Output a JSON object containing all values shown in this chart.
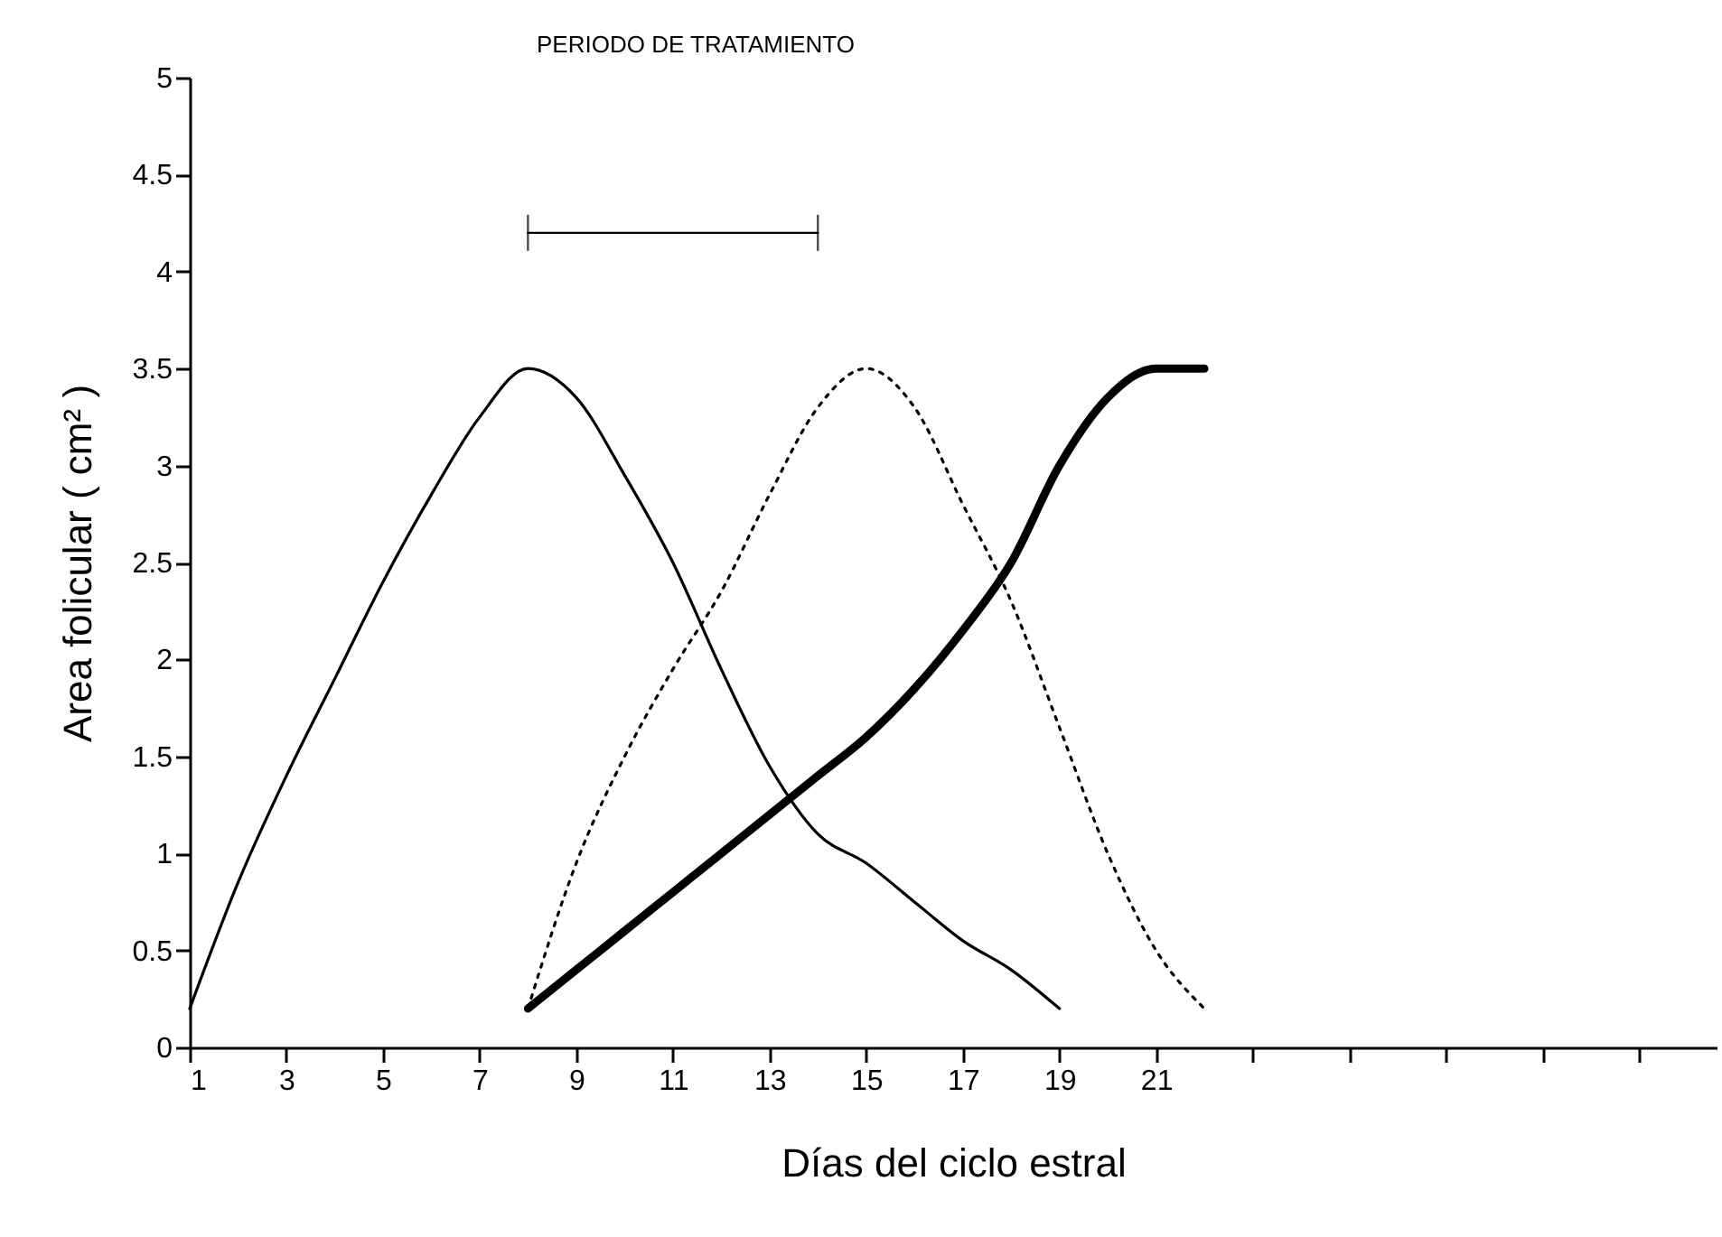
{
  "chart_data": {
    "type": "line",
    "xlabel": "Días del ciclo estral",
    "ylabel": "Area folicular ( cm² )",
    "xlim": [
      1,
      32.6
    ],
    "xticks": [
      1,
      3,
      5,
      7,
      9,
      11,
      13,
      15,
      17,
      19,
      21,
      {
        "value": 23,
        "label": null
      },
      {
        "value": 25,
        "label": null
      },
      {
        "value": 27,
        "label": null
      },
      {
        "value": 29,
        "label": null
      },
      {
        "value": 31,
        "label": null
      }
    ],
    "ylim": [
      0,
      5
    ],
    "yticks": [
      0,
      0.5,
      1,
      1.5,
      2,
      2.5,
      3,
      3.5,
      4,
      4.5,
      5
    ],
    "grid": false,
    "marker": "none",
    "series": [
      {
        "color": "#000000",
        "line_style": "solid",
        "x": [
          1,
          2,
          3,
          4,
          5,
          6,
          7,
          8,
          9,
          10,
          11,
          12,
          13,
          14,
          15,
          16,
          17,
          18,
          19
        ],
        "values": [
          0.2,
          0.85,
          1.4,
          1.9,
          2.4,
          2.85,
          3.25,
          3.5,
          3.35,
          2.95,
          2.5,
          1.95,
          1.45,
          1.1,
          0.95,
          0.75,
          0.55,
          0.4,
          0.2
        ]
      },
      {
        "color": "#000000",
        "line_style": "dotted",
        "x": [
          8,
          9,
          10,
          11,
          12,
          13,
          14,
          15,
          16,
          17,
          18,
          19,
          20,
          21,
          22
        ],
        "values": [
          0.2,
          0.95,
          1.5,
          1.95,
          2.35,
          2.85,
          3.3,
          3.5,
          3.3,
          2.8,
          2.3,
          1.65,
          1.0,
          0.5,
          0.2
        ]
      },
      {
        "color": "#000000",
        "line_style": "solid",
        "x": [
          8,
          9,
          10,
          11,
          12,
          13,
          14,
          15,
          16,
          17,
          18,
          19,
          20,
          21,
          22
        ],
        "values": [
          0.2,
          0.4,
          0.6,
          0.8,
          1.0,
          1.2,
          1.4,
          1.6,
          1.85,
          2.15,
          2.5,
          3.0,
          3.35,
          3.5,
          3.5
        ]
      },
      {
        "type": "line",
        "color": "#000000",
        "line_style": "solid",
        "x": [
          8,
          14
        ],
        "values": [
          4.2,
          4.2
        ]
      }
    ],
    "annotations": [
      "PERIODO DE TRATAMIENTO"
    ]
  }
}
